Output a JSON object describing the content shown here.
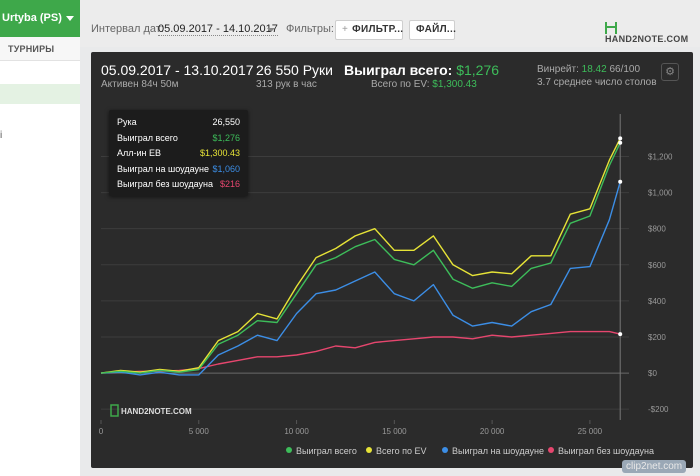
{
  "sidebar": {
    "player": "Urtyba (PS)",
    "tournaments_label": "ТУРНИРЫ",
    "mark": "і"
  },
  "toolbar": {
    "interval_label": "Интервал дат:",
    "interval_value": "05.09.2017 - 14.10.2017",
    "filters_label": "Фильтры:",
    "filter_button": "ФИЛЬТР...",
    "file_button": "ФАЙЛ...",
    "logo": "HAND2NOTE.COM"
  },
  "stats": {
    "date_range": "05.09.2017 - 13.10.2017",
    "active_time": "Активен 84ч 50м",
    "hands": "26 550 Руки",
    "hands_rate": "313 рук в час",
    "won_label": "Выиграл всего:",
    "won_value": "$1,276",
    "ev_label": "Всего по EV:",
    "ev_value": "$1,300.43",
    "winrate_label": "Винрейт:",
    "winrate_value": "18.42",
    "winrate_unit": "66/100",
    "tables_avg": "3.7 среднее число столов"
  },
  "tooltip": [
    {
      "label": "Рука",
      "value": "26,550",
      "color": "#ffffff"
    },
    {
      "label": "Выиграл всего",
      "value": "$1,276",
      "color": "#3dbd5a"
    },
    {
      "label": "Алл-ин ЕВ",
      "value": "$1,300.43",
      "color": "#e6e337"
    },
    {
      "label": "Выиграл на шоудауне",
      "value": "$1,060",
      "color": "#3c8ee6"
    },
    {
      "label": "Выиграл без шоудауна",
      "value": "$216",
      "color": "#e6466e"
    }
  ],
  "legend": [
    {
      "label": "Выиграл всего",
      "color": "#3dbd5a"
    },
    {
      "label": "Всего по EV",
      "color": "#e6e337"
    },
    {
      "label": "Выиграл на шоудауне",
      "color": "#3c8ee6"
    },
    {
      "label": "Выиграл без шоудауна",
      "color": "#e6466e"
    }
  ],
  "chart_watermark": "HAND2NOTE.COM",
  "page_watermark": "clip2net.com",
  "chart_data": {
    "type": "line",
    "title": "",
    "xlabel": "",
    "ylabel": "",
    "xlim": [
      0,
      27000
    ],
    "ylim": [
      -260,
      1380
    ],
    "x_ticks": [
      0,
      5000,
      10000,
      15000,
      20000,
      25000
    ],
    "x_tick_labels": [
      "0",
      "5 000",
      "10 000",
      "15 000",
      "20 000",
      "25 000"
    ],
    "y_ticks": [
      -200,
      0,
      200,
      400,
      600,
      800,
      1000,
      1200
    ],
    "y_tick_labels": [
      "-$200",
      "$0",
      "$200",
      "$400",
      "$600",
      "$800",
      "$1,000",
      "$1,200"
    ],
    "grid": true,
    "legend_position": "bottom",
    "x": [
      0,
      1000,
      2000,
      3000,
      4000,
      5000,
      6000,
      7000,
      8000,
      9000,
      10000,
      11000,
      12000,
      13000,
      14000,
      15000,
      16000,
      17000,
      18000,
      19000,
      20000,
      21000,
      22000,
      23000,
      24000,
      25000,
      26000,
      26550
    ],
    "series": [
      {
        "name": "Выиграл всего",
        "color": "#3dbd5a",
        "values": [
          0,
          10,
          0,
          15,
          5,
          20,
          160,
          210,
          290,
          280,
          440,
          600,
          640,
          700,
          740,
          630,
          600,
          680,
          520,
          470,
          500,
          480,
          580,
          610,
          830,
          870,
          1150,
          1276
        ]
      },
      {
        "name": "Всего по EV",
        "color": "#e6e337",
        "values": [
          0,
          15,
          5,
          20,
          10,
          30,
          180,
          230,
          330,
          300,
          480,
          640,
          690,
          760,
          800,
          680,
          680,
          760,
          600,
          540,
          560,
          550,
          650,
          650,
          880,
          910,
          1180,
          1300.43
        ]
      },
      {
        "name": "Выиграл на шоудауне",
        "color": "#3c8ee6",
        "values": [
          0,
          5,
          -10,
          5,
          -10,
          -10,
          100,
          150,
          210,
          180,
          330,
          440,
          460,
          510,
          560,
          440,
          400,
          490,
          320,
          260,
          280,
          260,
          340,
          380,
          580,
          590,
          850,
          1060
        ]
      },
      {
        "name": "Выиграл без шоудауна",
        "color": "#e6466e",
        "values": [
          0,
          5,
          10,
          10,
          15,
          25,
          50,
          70,
          90,
          90,
          100,
          120,
          150,
          140,
          170,
          180,
          190,
          200,
          200,
          190,
          210,
          200,
          210,
          220,
          230,
          230,
          230,
          216
        ]
      }
    ]
  }
}
